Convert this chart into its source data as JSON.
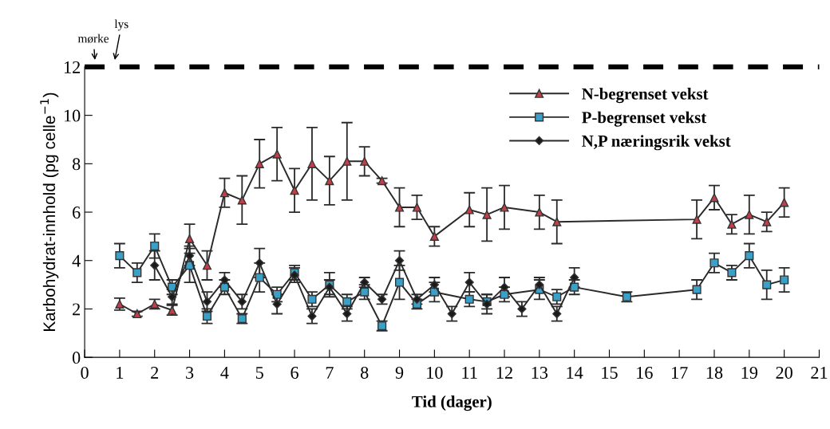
{
  "chart_data": {
    "type": "line",
    "xlabel": "Tid (dager)",
    "ylabel": "Karbohydrat-innhold (pg celle$^{−1}$)",
    "xlim": [
      0,
      21
    ],
    "xticks": [
      0,
      1,
      2,
      3,
      4,
      5,
      6,
      7,
      8,
      9,
      10,
      11,
      12,
      13,
      14,
      15,
      16,
      17,
      18,
      19,
      20,
      21
    ],
    "ylim": [
      0,
      12
    ],
    "yticks": [
      0,
      2,
      4,
      6,
      8,
      10,
      12
    ],
    "grid": false,
    "legend": "top right",
    "ref_lines": [
      {
        "axis": "y",
        "value": 12,
        "color": "#000000",
        "line_style": "dashed"
      }
    ],
    "annotations": [
      {
        "text": "mørke",
        "x": 0.3,
        "y": 12
      },
      {
        "text": "lys",
        "x": 0.85,
        "y": 12
      }
    ],
    "series": [
      {
        "name": "N-begrenset vekst",
        "color": "#c0404a",
        "marker": "triangle",
        "x": [
          1,
          1.5,
          2,
          2.5,
          3,
          3.5,
          4,
          4.5,
          5,
          5.5,
          6,
          6.5,
          7,
          7.5,
          8,
          8.5,
          9,
          9.5,
          10,
          11,
          11.5,
          12,
          13,
          13.5,
          17.5,
          18,
          18.5,
          19,
          19.5,
          20
        ],
        "values": [
          2.2,
          1.8,
          2.2,
          1.95,
          4.9,
          3.8,
          6.8,
          6.5,
          8.0,
          8.4,
          6.9,
          8.0,
          7.3,
          8.1,
          8.1,
          7.3,
          6.2,
          6.2,
          5.0,
          6.1,
          5.9,
          6.2,
          6.0,
          5.6,
          5.7,
          6.6,
          5.5,
          5.9,
          5.6,
          6.4
        ],
        "errors": [
          0.25,
          0.1,
          0.2,
          0.2,
          0.6,
          0.6,
          0.6,
          1.0,
          1.0,
          1.1,
          0.9,
          1.5,
          1.0,
          1.6,
          0.6,
          0.1,
          0.8,
          0.5,
          0.4,
          0.7,
          1.1,
          0.9,
          0.7,
          0.9,
          0.8,
          0.5,
          0.4,
          0.8,
          0.4,
          0.6
        ]
      },
      {
        "name": "P-begrenset vekst",
        "color": "#3aa0c8",
        "marker": "square",
        "x": [
          1,
          1.5,
          2,
          2.5,
          3,
          3.5,
          4,
          4.5,
          5,
          5.5,
          6,
          6.5,
          7,
          7.5,
          8,
          8.5,
          9,
          9.5,
          10,
          11,
          11.5,
          12,
          13,
          13.5,
          14,
          15.5,
          17.5,
          18,
          18.5,
          19,
          19.5,
          20
        ],
        "values": [
          4.2,
          3.5,
          4.6,
          2.9,
          3.8,
          1.7,
          2.9,
          1.6,
          3.3,
          2.6,
          3.5,
          2.4,
          3.0,
          2.3,
          2.7,
          1.3,
          3.1,
          2.2,
          2.7,
          2.4,
          2.3,
          2.6,
          2.8,
          2.5,
          2.9,
          2.5,
          2.8,
          3.9,
          3.5,
          4.2,
          3.0,
          3.2
        ],
        "errors": [
          0.5,
          0.4,
          0.5,
          0.3,
          0.7,
          0.3,
          0.3,
          0.2,
          0.6,
          0.3,
          0.3,
          0.3,
          0.5,
          0.3,
          0.3,
          0.2,
          0.7,
          0.2,
          0.4,
          0.3,
          0.3,
          0.3,
          0.4,
          0.3,
          0.3,
          0.2,
          0.4,
          0.4,
          0.3,
          0.5,
          0.6,
          0.5
        ]
      },
      {
        "name": "N,P næringsrik vekst",
        "color": "#1a1a1a",
        "marker": "diamond",
        "x": [
          2,
          2.5,
          3,
          3.5,
          4,
          4.5,
          5,
          5.5,
          6,
          6.5,
          7,
          7.5,
          8,
          8.5,
          9,
          9.5,
          10,
          10.5,
          11,
          11.5,
          12,
          12.5,
          13,
          13.5,
          14
        ],
        "values": [
          3.8,
          2.5,
          4.2,
          2.3,
          3.2,
          2.3,
          3.9,
          2.2,
          3.4,
          1.7,
          2.9,
          1.8,
          3.1,
          2.4,
          4.0,
          2.4,
          3.0,
          1.8,
          3.1,
          2.2,
          2.9,
          2.0,
          3.0,
          1.8,
          3.3
        ],
        "errors": [
          0.6,
          0.3,
          0.4,
          0.4,
          0.3,
          0.3,
          0.6,
          0.4,
          0.3,
          0.3,
          0.3,
          0.3,
          0.2,
          0.2,
          0.4,
          0.2,
          0.3,
          0.3,
          0.4,
          0.4,
          0.4,
          0.3,
          0.3,
          0.3,
          0.4
        ]
      }
    ]
  }
}
